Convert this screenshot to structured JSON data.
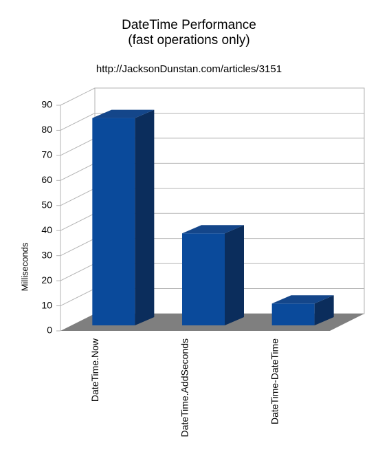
{
  "chart_data": {
    "type": "bar",
    "title_lines": [
      "DateTime Performance",
      "(fast operations only)"
    ],
    "subtitle": "http://JacksonDunstan.com/articles/3151",
    "xlabel": "",
    "ylabel": "Milliseconds",
    "ylim": [
      0,
      90
    ],
    "ytick_values": [
      0,
      10,
      20,
      30,
      40,
      50,
      60,
      70,
      80,
      90
    ],
    "ytick_labels": [
      "0",
      "10",
      "20",
      "30",
      "40",
      "50",
      "60",
      "70",
      "80",
      "90"
    ],
    "categories": [
      "DateTime.Now",
      "DateTime.AddSeconds",
      "DateTime-DateTime"
    ],
    "values": [
      86,
      40,
      12
    ],
    "grid": true,
    "style_3d": true,
    "colors": {
      "bar_front": "#0a4a9b",
      "bar_side": "#0b2d5c",
      "bar_top": "#14468a",
      "floor": "#7f7f7f",
      "grid": "#b3b3b3"
    }
  }
}
